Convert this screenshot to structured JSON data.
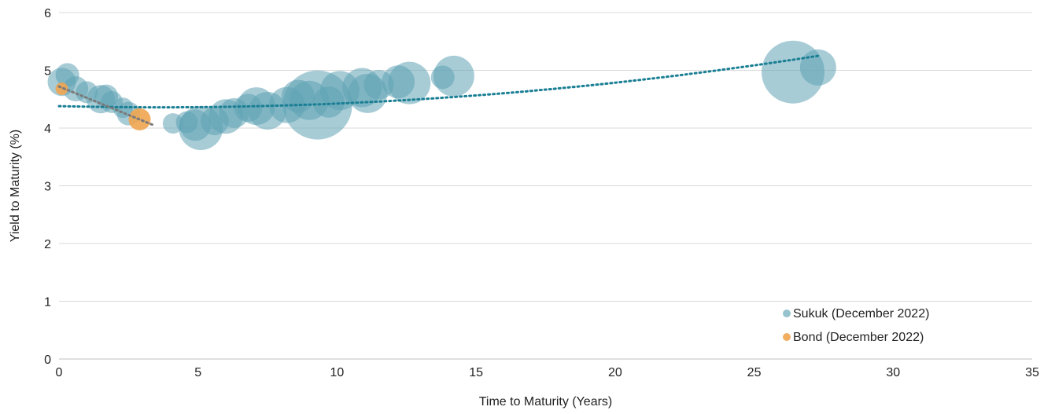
{
  "chart_data": {
    "type": "scatter",
    "title": "",
    "xlabel": "Time to Maturity (Years)",
    "ylabel": "Yield to Maturity (%)",
    "xlim": [
      0,
      35
    ],
    "ylim": [
      0,
      6
    ],
    "xticks": [
      0,
      5,
      10,
      15,
      20,
      25,
      30,
      35
    ],
    "yticks": [
      0,
      1,
      2,
      3,
      4,
      5,
      6
    ],
    "grid": "horizontal",
    "legend_position": "bottom-right",
    "bubble_size_note": "relative issue size",
    "series": [
      {
        "name": "Sukuk (December 2022)",
        "color": "#5ea3b4",
        "points": [
          {
            "x": 0.1,
            "y": 4.8,
            "size": 18
          },
          {
            "x": 0.3,
            "y": 4.92,
            "size": 15
          },
          {
            "x": 0.6,
            "y": 4.68,
            "size": 16
          },
          {
            "x": 1.0,
            "y": 4.62,
            "size": 14
          },
          {
            "x": 1.5,
            "y": 4.5,
            "size": 18
          },
          {
            "x": 1.7,
            "y": 4.55,
            "size": 15
          },
          {
            "x": 1.9,
            "y": 4.45,
            "size": 14
          },
          {
            "x": 2.3,
            "y": 4.35,
            "size": 13
          },
          {
            "x": 2.5,
            "y": 4.25,
            "size": 15
          },
          {
            "x": 4.1,
            "y": 4.08,
            "size": 13
          },
          {
            "x": 4.6,
            "y": 4.1,
            "size": 14
          },
          {
            "x": 4.9,
            "y": 4.05,
            "size": 20
          },
          {
            "x": 5.1,
            "y": 4.0,
            "size": 28
          },
          {
            "x": 5.6,
            "y": 4.12,
            "size": 18
          },
          {
            "x": 6.0,
            "y": 4.2,
            "size": 22
          },
          {
            "x": 6.3,
            "y": 4.26,
            "size": 19
          },
          {
            "x": 6.8,
            "y": 4.35,
            "size": 18
          },
          {
            "x": 7.1,
            "y": 4.38,
            "size": 24
          },
          {
            "x": 7.5,
            "y": 4.3,
            "size": 24
          },
          {
            "x": 8.2,
            "y": 4.4,
            "size": 23
          },
          {
            "x": 8.6,
            "y": 4.55,
            "size": 21
          },
          {
            "x": 9.0,
            "y": 4.48,
            "size": 25
          },
          {
            "x": 9.3,
            "y": 4.4,
            "size": 44
          },
          {
            "x": 9.7,
            "y": 4.45,
            "size": 20
          },
          {
            "x": 10.1,
            "y": 4.65,
            "size": 25
          },
          {
            "x": 10.9,
            "y": 4.7,
            "size": 25
          },
          {
            "x": 11.1,
            "y": 4.6,
            "size": 25
          },
          {
            "x": 11.5,
            "y": 4.75,
            "size": 19
          },
          {
            "x": 12.2,
            "y": 4.8,
            "size": 21
          },
          {
            "x": 12.6,
            "y": 4.78,
            "size": 27
          },
          {
            "x": 13.8,
            "y": 4.88,
            "size": 15
          },
          {
            "x": 14.2,
            "y": 4.9,
            "size": 26
          },
          {
            "x": 26.4,
            "y": 4.97,
            "size": 40
          },
          {
            "x": 27.3,
            "y": 5.05,
            "size": 23
          }
        ],
        "trendline": {
          "type": "polynomial",
          "color": "#1a7f94",
          "from": [
            0.0,
            4.38
          ],
          "to": [
            27.3,
            5.25
          ],
          "style": "dotted"
        }
      },
      {
        "name": "Bond (December 2022)",
        "color": "#f0a550",
        "points": [
          {
            "x": 0.1,
            "y": 4.68,
            "size": 8
          },
          {
            "x": 2.9,
            "y": 4.15,
            "size": 14
          }
        ],
        "trendline": {
          "type": "linear",
          "color": "#7a7a7a",
          "from": [
            0.0,
            4.72
          ],
          "to": [
            3.4,
            4.05
          ],
          "style": "dotted"
        }
      }
    ]
  }
}
